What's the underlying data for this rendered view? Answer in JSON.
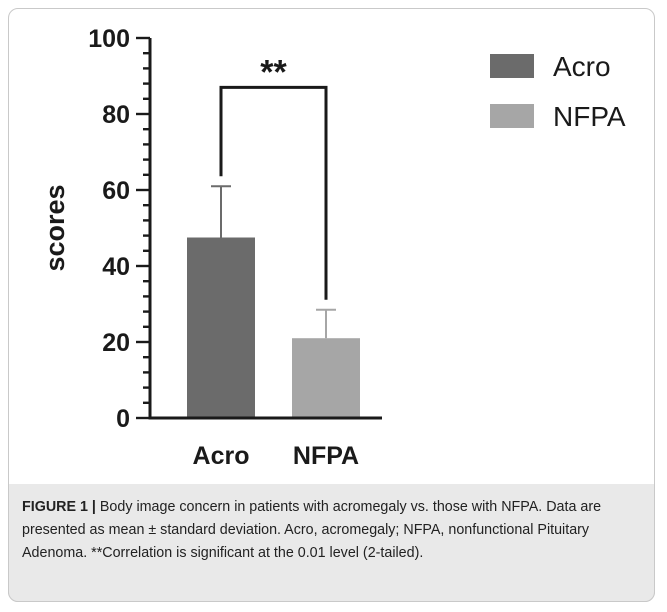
{
  "chart_data": {
    "type": "bar",
    "categories": [
      "Acro",
      "NFPA"
    ],
    "series": [
      {
        "name": "Acro",
        "values": [
          47.5,
          null
        ],
        "error": [
          13.5,
          null
        ],
        "color": "#6b6b6b"
      },
      {
        "name": "NFPA",
        "values": [
          null,
          21
        ],
        "error": [
          null,
          7.5
        ],
        "color": "#a6a6a6"
      }
    ],
    "values": [
      47.5,
      21
    ],
    "errors": [
      13.5,
      7.5
    ],
    "colors": [
      "#6b6b6b",
      "#a6a6a6"
    ],
    "ylabel": "scores",
    "xlabel": "",
    "ylim": [
      0,
      100
    ],
    "yticks": [
      0,
      20,
      40,
      60,
      80,
      100
    ],
    "ytick_labels": [
      "0",
      "20",
      "40",
      "60",
      "80",
      "100"
    ],
    "minor_ticks_per_major": 5,
    "grid": false,
    "legend": {
      "position": "top-right",
      "entries": [
        "Acro",
        "NFPA"
      ]
    },
    "annotation": {
      "text": "**",
      "between": [
        "Acro",
        "NFPA"
      ],
      "bracket_y": 87
    }
  },
  "caption": {
    "label": "FIGURE 1 |",
    "text": " Body image concern in patients with acromegaly vs. those with NFPA. Data are presented as mean ± standard deviation. Acro, acromegaly; NFPA, nonfunctional Pituitary Adenoma. **Correlation is significant at the 0.01 level (2-tailed)."
  }
}
